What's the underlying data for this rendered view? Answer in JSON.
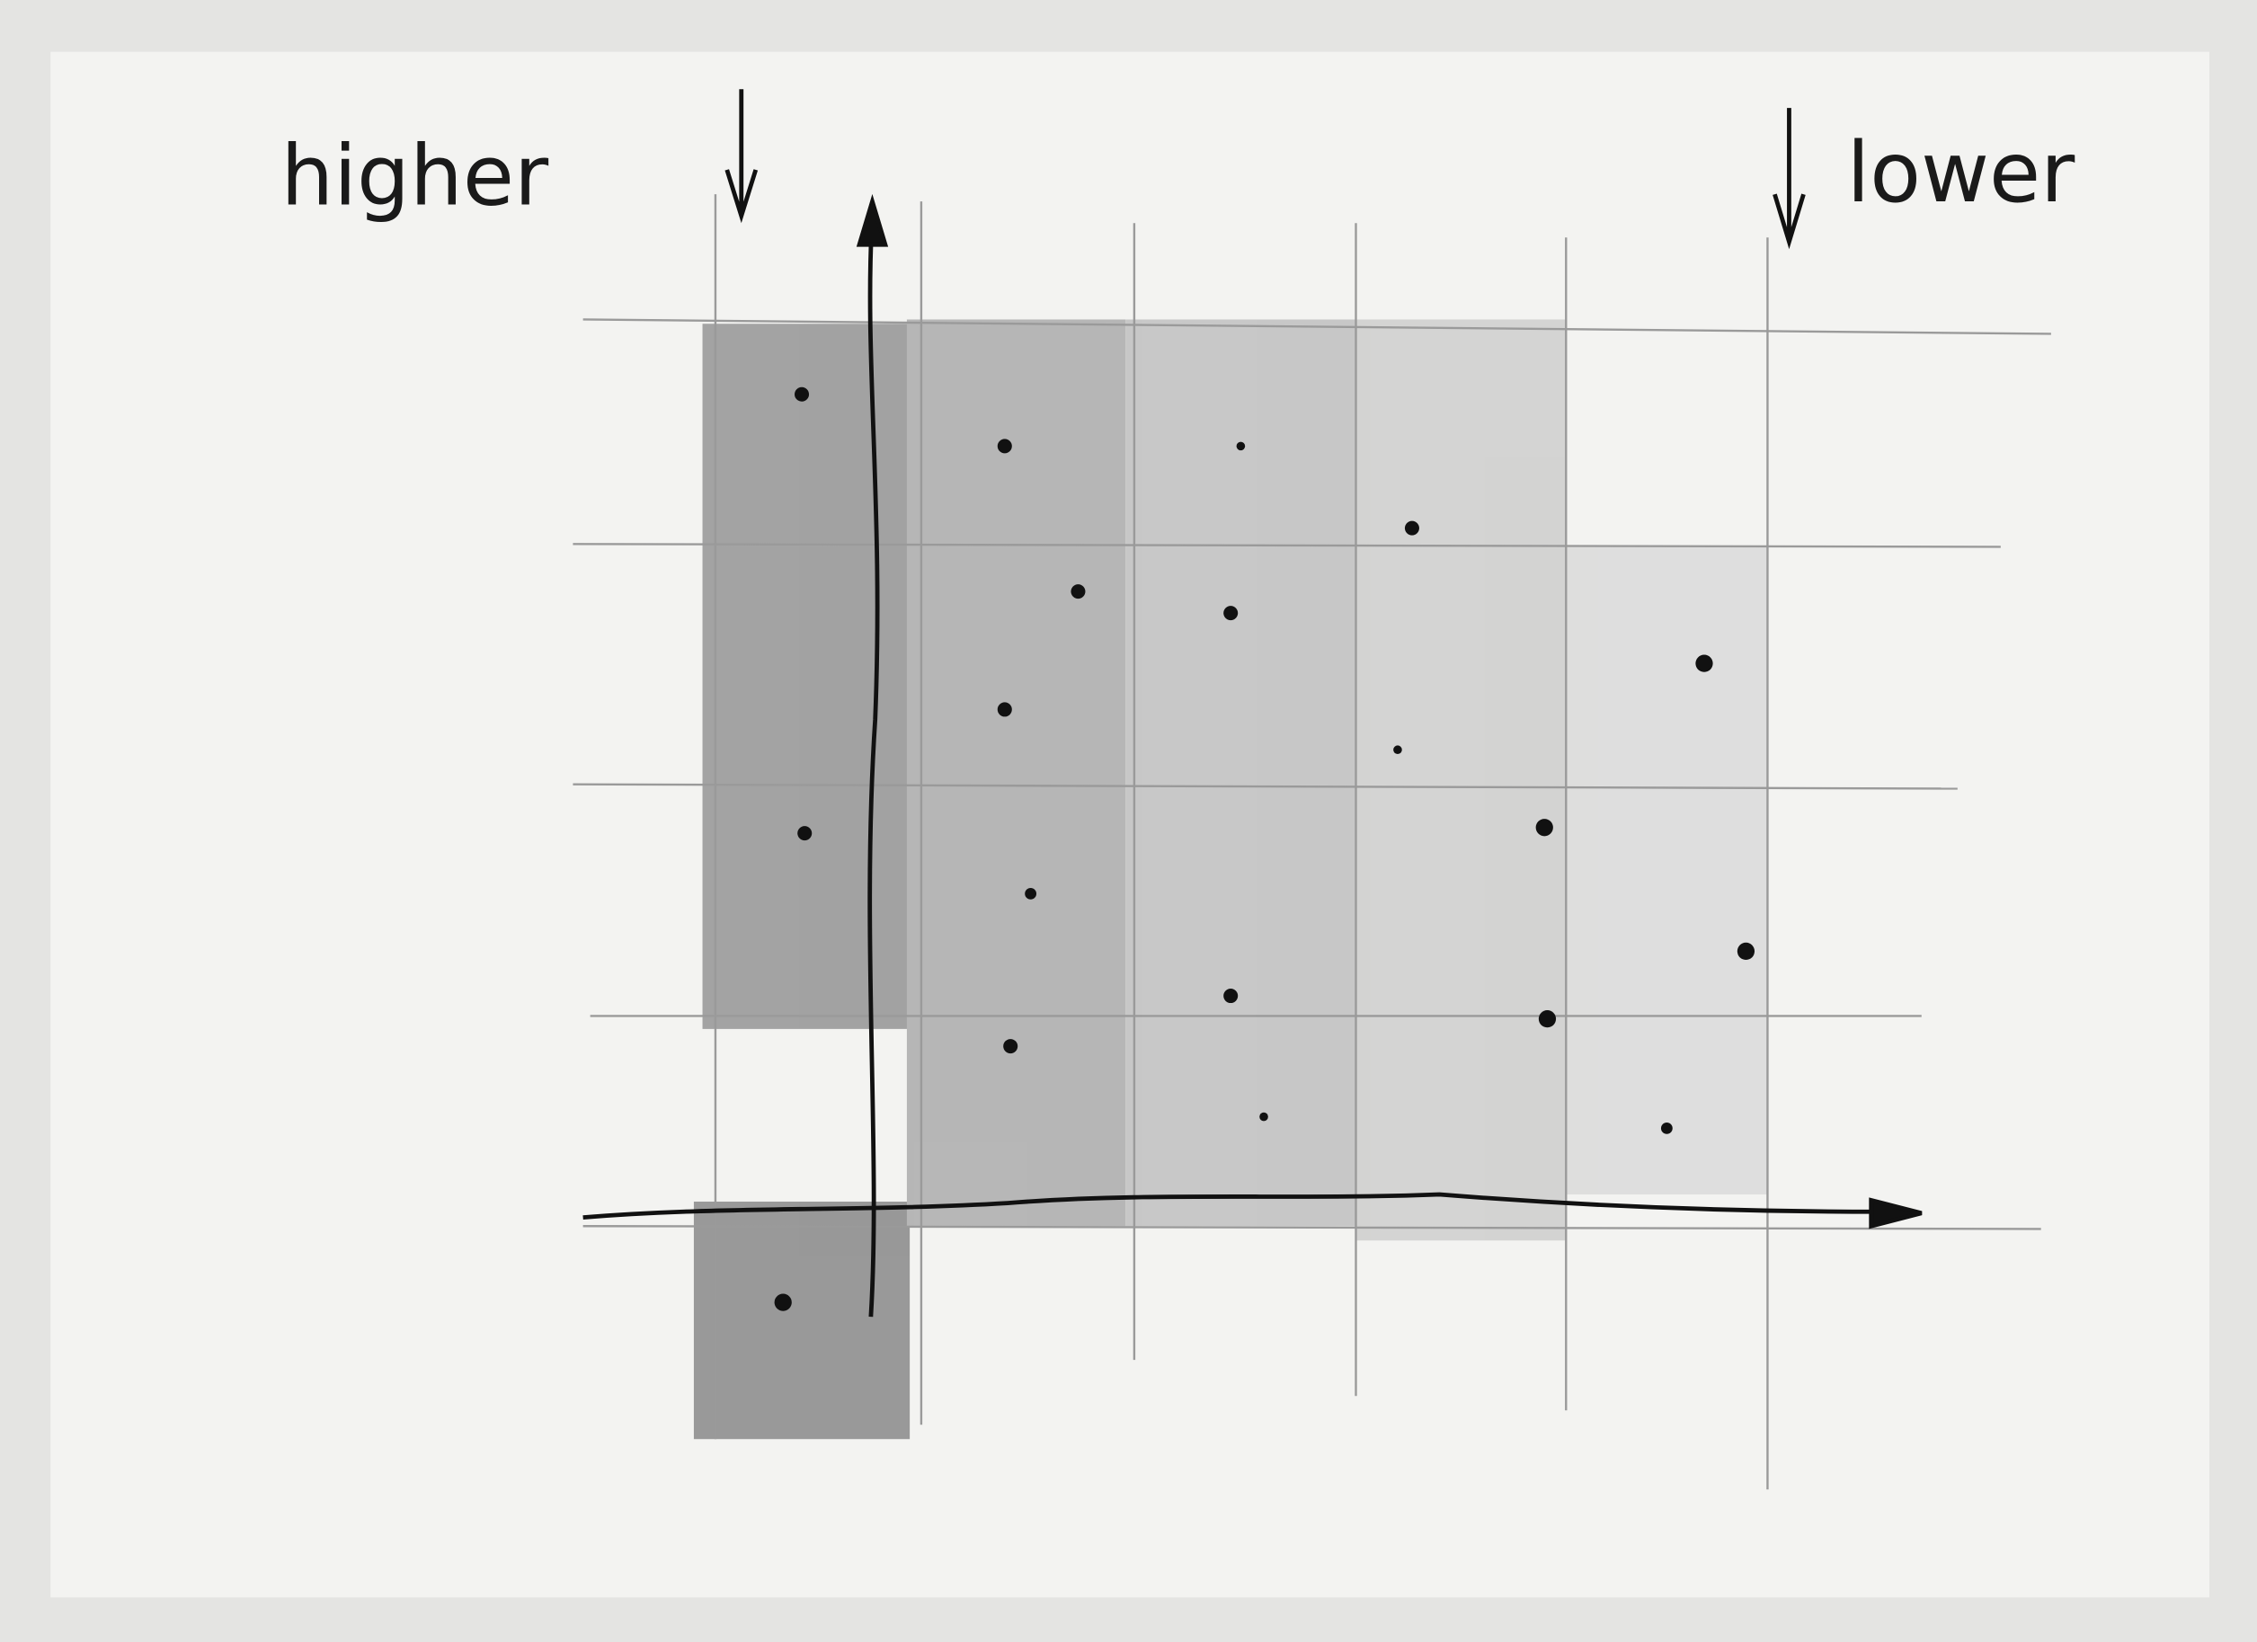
{
  "labels": {
    "left": "higher",
    "right": "lower"
  }
}
